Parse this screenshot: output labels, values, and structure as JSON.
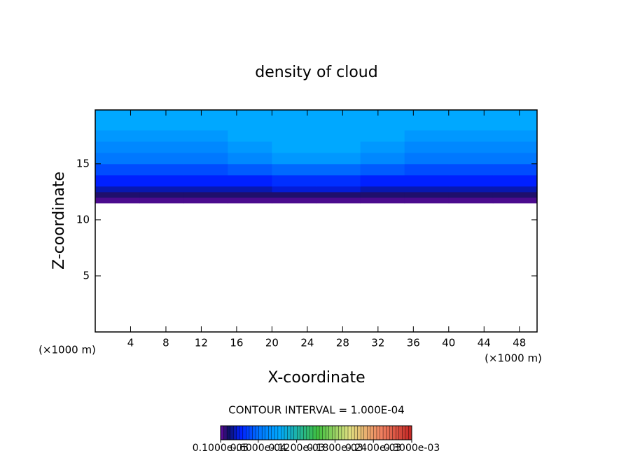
{
  "chart_data": {
    "type": "contour",
    "title": "density of cloud",
    "x_label": "X-coordinate",
    "y_label": "Z-coordinate",
    "x_unit": "(×1000 m)",
    "y_unit": "(×1000 m)",
    "xlim": [
      0,
      50
    ],
    "xticks": [
      4,
      8,
      12,
      16,
      20,
      24,
      28,
      32,
      36,
      40,
      44,
      48
    ],
    "ylim": [
      0,
      19.8
    ],
    "yticks": [
      5,
      10,
      15
    ],
    "x": [
      0,
      5,
      10,
      15,
      20,
      25,
      30,
      35,
      40,
      45
    ],
    "y": [
      11.5,
      12,
      12.5,
      13,
      14,
      15,
      16,
      17,
      18
    ],
    "z": [
      [
        2e-06,
        2e-06,
        2e-06,
        2e-06,
        2e-06,
        2e-06,
        2e-06,
        2e-06,
        2e-06,
        2e-06
      ],
      [
        8e-06,
        8e-06,
        8e-06,
        8e-06,
        8e-06,
        8e-06,
        8e-06,
        8e-06,
        8e-06,
        8e-06
      ],
      [
        2e-05,
        2e-05,
        2e-05,
        2e-05,
        2.5e-05,
        2.5e-05,
        2e-05,
        2e-05,
        2e-05,
        2e-05
      ],
      [
        3e-05,
        3e-05,
        3e-05,
        3e-05,
        3.5e-05,
        3.5e-05,
        3e-05,
        3e-05,
        3e-05,
        3e-05
      ],
      [
        4.5e-05,
        4.5e-05,
        4.5e-05,
        5e-05,
        5.5e-05,
        5.5e-05,
        5e-05,
        4.5e-05,
        4.5e-05,
        4.5e-05
      ],
      [
        6e-05,
        6e-05,
        6e-05,
        7e-05,
        8e-05,
        8e-05,
        7e-05,
        6e-05,
        6e-05,
        6e-05
      ],
      [
        7e-05,
        7e-05,
        7e-05,
        8e-05,
        9e-05,
        9e-05,
        8e-05,
        7e-05,
        7e-05,
        7e-05
      ],
      [
        8e-05,
        8e-05,
        8e-05,
        9e-05,
        9e-05,
        9e-05,
        9e-05,
        8e-05,
        8e-05,
        8e-05
      ],
      [
        9e-05,
        9e-05,
        9e-05,
        9e-05,
        9e-05,
        9e-05,
        9e-05,
        9e-05,
        9e-05,
        9e-05
      ]
    ],
    "colormap": [
      [
        0,
        "#5a0a9a"
      ],
      [
        1e-05,
        "#101060"
      ],
      [
        3e-05,
        "#0020ff"
      ],
      [
        6e-05,
        "#0078ff"
      ],
      [
        9e-05,
        "#00a8ff"
      ],
      [
        0.00015,
        "#40c040"
      ],
      [
        0.0002,
        "#e0e080"
      ],
      [
        0.00025,
        "#f08060"
      ],
      [
        0.0003,
        "#c02020"
      ]
    ],
    "contour_interval": "CONTOUR INTERVAL = 1.000E-04",
    "colorbar_lim": [
      1e-06,
      0.0003
    ],
    "colorbar_ticks": [
      {
        "value": 1e-06,
        "label": "0.1000e-05"
      },
      {
        "value": 6e-05,
        "label": "0.6000e-04"
      },
      {
        "value": 0.00012,
        "label": "0.1200e-03"
      },
      {
        "value": 0.00018,
        "label": "0.1800e-03"
      },
      {
        "value": 0.00024,
        "label": "0.2400e-03"
      },
      {
        "value": 0.0003,
        "label": "0.3000e-03"
      }
    ]
  }
}
